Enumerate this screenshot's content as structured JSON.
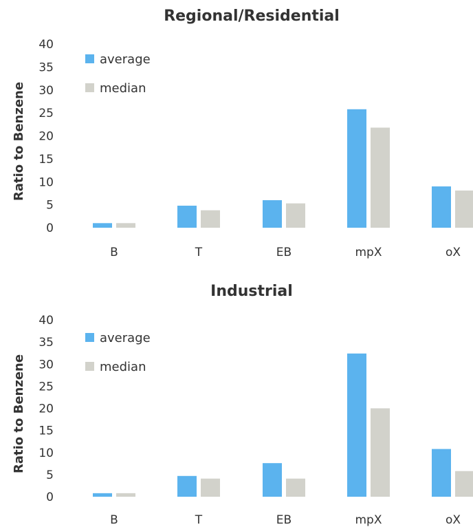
{
  "colors": {
    "average": "#5bb3ee",
    "median": "#d2d2cb"
  },
  "chart_data": [
    {
      "type": "bar",
      "title": "Regional/Residential",
      "ylabel": "Ratio to Benzene",
      "xlabel": "",
      "ylim": [
        0,
        40
      ],
      "yticks": [
        0,
        5,
        10,
        15,
        20,
        25,
        30,
        35,
        40
      ],
      "categories": [
        "B",
        "T",
        "EB",
        "mpX",
        "oX"
      ],
      "legend_position": "top-left",
      "grid": false,
      "series": [
        {
          "name": "average",
          "values": [
            1,
            4.8,
            6,
            25.8,
            9
          ]
        },
        {
          "name": "median",
          "values": [
            1,
            3.8,
            5.3,
            21.8,
            8.1
          ]
        }
      ]
    },
    {
      "type": "bar",
      "title": "Industrial",
      "ylabel": "Ratio to Benzene",
      "xlabel": "",
      "ylim": [
        0,
        40
      ],
      "yticks": [
        0,
        5,
        10,
        15,
        20,
        25,
        30,
        35,
        40
      ],
      "categories": [
        "B",
        "T",
        "EB",
        "mpX",
        "oX"
      ],
      "legend_position": "top-left",
      "grid": false,
      "series": [
        {
          "name": "average",
          "values": [
            0.8,
            4.7,
            7.6,
            32.4,
            10.8
          ]
        },
        {
          "name": "median",
          "values": [
            0.8,
            4.1,
            4.1,
            20,
            5.8
          ]
        }
      ]
    }
  ]
}
